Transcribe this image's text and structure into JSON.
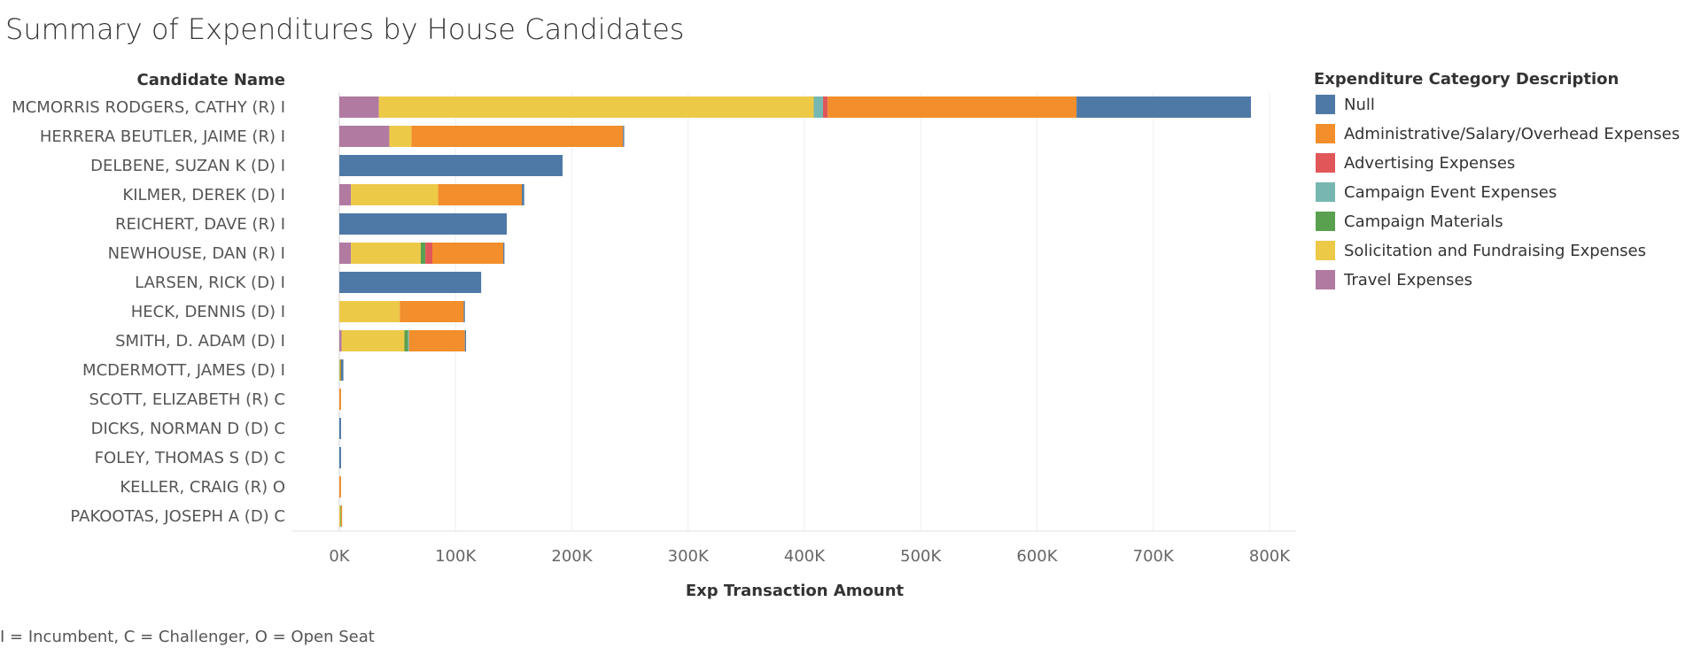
{
  "chart_data": {
    "type": "bar",
    "orientation": "horizontal",
    "stacked": true,
    "title": "Summary of Expenditures by House Candidates",
    "ylabel": "Candidate Name",
    "xlabel": "Exp Transaction Amount",
    "xlim": [
      0,
      800000
    ],
    "xticks": [
      0,
      100000,
      200000,
      300000,
      400000,
      500000,
      600000,
      700000,
      800000
    ],
    "xtick_labels": [
      "0K",
      "100K",
      "200K",
      "300K",
      "400K",
      "500K",
      "600K",
      "700K",
      "800K"
    ],
    "grid": true,
    "legend_title": "Expenditure Category Description",
    "legend_position": "right",
    "categories": [
      "MCMORRIS RODGERS, CATHY (R) I",
      "HERRERA BEUTLER, JAIME (R) I",
      "DELBENE, SUZAN K (D) I",
      "KILMER, DEREK (D) I",
      "REICHERT, DAVE (R) I",
      "NEWHOUSE, DAN (R) I",
      "LARSEN, RICK (D) I",
      "HECK, DENNIS (D) I",
      "SMITH, D. ADAM (D) I",
      "MCDERMOTT, JAMES (D) I",
      "SCOTT, ELIZABETH (R) C",
      "DICKS, NORMAN D (D) C",
      "FOLEY, THOMAS S (D) C",
      "KELLER, CRAIG (R) O",
      "PAKOOTAS, JOSEPH A (D) C"
    ],
    "stack_order": [
      "Travel Expenses",
      "Solicitation and Fundraising Expenses",
      "Campaign Materials",
      "Campaign Event Expenses",
      "Advertising Expenses",
      "Administrative/Salary/Overhead Expenses",
      "Null"
    ],
    "series": [
      {
        "name": "Null",
        "color": "#4e79a7",
        "values": [
          150000,
          1000,
          192000,
          2000,
          144000,
          1000,
          122000,
          1000,
          1000,
          2000,
          0,
          1500,
          1500,
          0,
          0
        ]
      },
      {
        "name": "Administrative/Salary/Overhead Expenses",
        "color": "#f28e2b",
        "values": [
          214000,
          182000,
          0,
          72000,
          0,
          61000,
          0,
          55000,
          48000,
          500,
          1500,
          0,
          0,
          1500,
          500
        ]
      },
      {
        "name": "Advertising Expenses",
        "color": "#e15759",
        "values": [
          4000,
          0,
          0,
          0,
          0,
          6000,
          0,
          0,
          0,
          0,
          0,
          0,
          0,
          0,
          0
        ]
      },
      {
        "name": "Campaign Event Expenses",
        "color": "#76b7b2",
        "values": [
          8000,
          0,
          0,
          0,
          0,
          0,
          0,
          0,
          1000,
          0,
          0,
          0,
          0,
          0,
          0
        ]
      },
      {
        "name": "Campaign Materials",
        "color": "#59a14f",
        "values": [
          0,
          0,
          0,
          0,
          0,
          4000,
          0,
          0,
          3000,
          500,
          0,
          0,
          0,
          0,
          500
        ]
      },
      {
        "name": "Solicitation and Fundraising Expenses",
        "color": "#edc948",
        "values": [
          374000,
          19000,
          0,
          75000,
          0,
          60000,
          0,
          52000,
          54000,
          500,
          0,
          0,
          0,
          0,
          1000
        ]
      },
      {
        "name": "Travel Expenses",
        "color": "#b07aa1",
        "values": [
          34000,
          43000,
          0,
          10000,
          0,
          10000,
          0,
          0,
          2000,
          0,
          0,
          0,
          0,
          0,
          0
        ]
      }
    ],
    "footnote": "I = Incumbent, C = Challenger, O = Open Seat"
  }
}
